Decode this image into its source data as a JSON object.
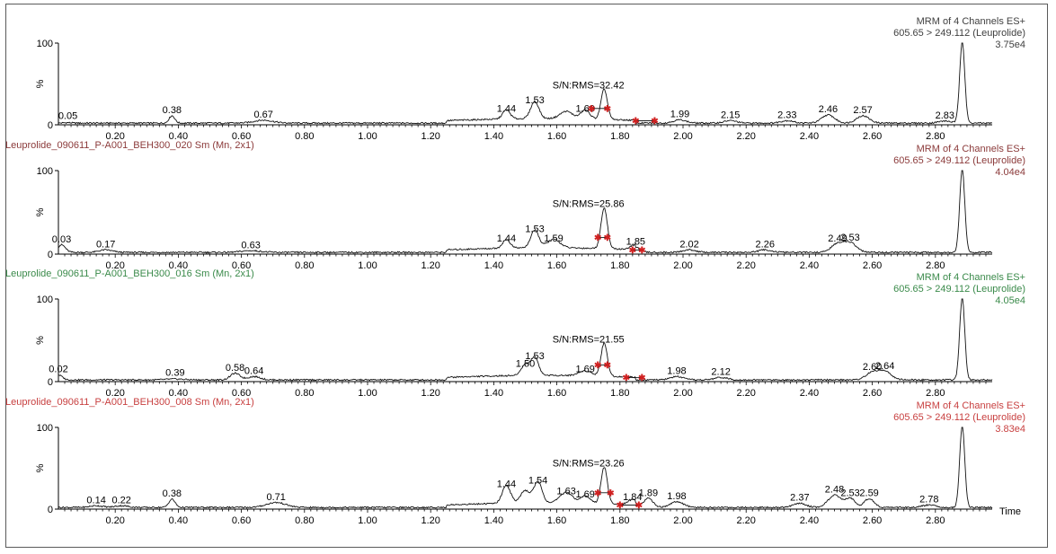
{
  "chart_data": [
    {
      "type": "line",
      "sample_name": "",
      "title_lines": [
        "MRM of 4 Channels ES+",
        "605.65 > 249.112 (Leuprolide)",
        "3.75e4"
      ],
      "title_color": "#404040",
      "ylabel": "%",
      "yticks": [
        0,
        100
      ],
      "xticks": [
        "0.20",
        "0.40",
        "0.60",
        "0.80",
        "1.00",
        "1.20",
        "1.40",
        "1.60",
        "1.80",
        "2.00",
        "2.20",
        "2.40",
        "2.60",
        "2.80"
      ],
      "xlim": [
        0.02,
        2.98
      ],
      "ylim": [
        0,
        100
      ],
      "sn_label": "S/N:RMS=32.42",
      "sn_x": 1.7,
      "noise_markers": [
        [
          1.85,
          1.91
        ]
      ],
      "peak_markers": [
        [
          1.71,
          1.76
        ]
      ],
      "peaks": [
        [
          0.05,
          0.5,
          0.012
        ],
        [
          0.38,
          9,
          0.009
        ],
        [
          0.67,
          3.5,
          0.03
        ],
        [
          1.44,
          11,
          0.012
        ],
        [
          1.53,
          21,
          0.013
        ],
        [
          1.63,
          9,
          0.02
        ],
        [
          1.69,
          11,
          0.014
        ],
        [
          1.75,
          37,
          0.01
        ],
        [
          1.99,
          4,
          0.02
        ],
        [
          2.15,
          3,
          0.02
        ],
        [
          2.33,
          3,
          0.02
        ],
        [
          2.46,
          10,
          0.02
        ],
        [
          2.57,
          9,
          0.02
        ],
        [
          2.83,
          2.5,
          0.02
        ],
        [
          2.885,
          100,
          0.008
        ]
      ],
      "peak_labels": [
        {
          "x": 0.05,
          "text": "0.05"
        },
        {
          "x": 0.38,
          "text": "0.38"
        },
        {
          "x": 0.67,
          "text": "0.67"
        },
        {
          "x": 1.44,
          "text": "1.44"
        },
        {
          "x": 1.53,
          "text": "1.53"
        },
        {
          "x": 1.69,
          "text": "1.69"
        },
        {
          "x": 1.99,
          "text": "1.99"
        },
        {
          "x": 2.15,
          "text": "2.15"
        },
        {
          "x": 2.33,
          "text": "2.33"
        },
        {
          "x": 2.46,
          "text": "2.46"
        },
        {
          "x": 2.57,
          "text": "2.57"
        },
        {
          "x": 2.83,
          "text": "2.83"
        }
      ]
    },
    {
      "type": "line",
      "sample_name": "Leuprolide_090611_P-A001_BEH300_020 Sm (Mn, 2x1)",
      "title_lines": [
        "MRM of 4 Channels ES+",
        "605.65 > 249.112 (Leuprolide)",
        "4.04e4"
      ],
      "title_color": "#8b3a3a",
      "ylabel": "%",
      "yticks": [
        0,
        100
      ],
      "xticks": [
        "0.20",
        "0.40",
        "0.60",
        "0.80",
        "1.00",
        "1.20",
        "1.40",
        "1.60",
        "1.80",
        "2.00",
        "2.20",
        "2.40",
        "2.60",
        "2.80"
      ],
      "xlim": [
        0.02,
        2.98
      ],
      "ylim": [
        0,
        100
      ],
      "sn_label": "S/N:RMS=25.86",
      "sn_x": 1.7,
      "noise_markers": [
        [
          1.84,
          1.87
        ]
      ],
      "peak_markers": [
        [
          1.73,
          1.76
        ]
      ],
      "peaks": [
        [
          0.03,
          9,
          0.012
        ],
        [
          0.17,
          3,
          0.02
        ],
        [
          0.63,
          2,
          0.03
        ],
        [
          1.44,
          10,
          0.012
        ],
        [
          1.53,
          21,
          0.013
        ],
        [
          1.59,
          10,
          0.02
        ],
        [
          1.75,
          49,
          0.01
        ],
        [
          1.85,
          6,
          0.015
        ],
        [
          2.02,
          3,
          0.02
        ],
        [
          2.26,
          3,
          0.02
        ],
        [
          2.49,
          10,
          0.02
        ],
        [
          2.53,
          11,
          0.02
        ],
        [
          2.885,
          100,
          0.008
        ]
      ],
      "peak_labels": [
        {
          "x": 0.03,
          "text": "0.03"
        },
        {
          "x": 0.17,
          "text": "0.17"
        },
        {
          "x": 0.63,
          "text": "0.63"
        },
        {
          "x": 1.44,
          "text": "1.44"
        },
        {
          "x": 1.53,
          "text": "1.53"
        },
        {
          "x": 1.59,
          "text": "1.59"
        },
        {
          "x": 1.85,
          "text": "1.85"
        },
        {
          "x": 2.02,
          "text": "2.02"
        },
        {
          "x": 2.26,
          "text": "2.26"
        },
        {
          "x": 2.49,
          "text": "2.49"
        },
        {
          "x": 2.53,
          "text": "2.53"
        }
      ]
    },
    {
      "type": "line",
      "sample_name": "Leuprolide_090611_P-A001_BEH300_016 Sm (Mn, 2x1)",
      "title_lines": [
        "MRM of 4 Channels ES+",
        "605.65 > 249.112 (Leuprolide)",
        "4.05e4"
      ],
      "title_color": "#3a8a4a",
      "ylabel": "%",
      "yticks": [
        0,
        100
      ],
      "xticks": [
        "0.20",
        "0.40",
        "0.60",
        "0.80",
        "1.00",
        "1.20",
        "1.40",
        "1.60",
        "1.80",
        "2.00",
        "2.20",
        "2.40",
        "2.60",
        "2.80"
      ],
      "xlim": [
        0.02,
        2.98
      ],
      "ylim": [
        0,
        100
      ],
      "sn_label": "S/N:RMS=21.55",
      "sn_x": 1.7,
      "noise_markers": [
        [
          1.82,
          1.87
        ]
      ],
      "peak_markers": [
        [
          1.73,
          1.76
        ]
      ],
      "peaks": [
        [
          0.02,
          6,
          0.012
        ],
        [
          0.39,
          1,
          0.03
        ],
        [
          0.58,
          8,
          0.015
        ],
        [
          0.64,
          4,
          0.02
        ],
        [
          1.5,
          13,
          0.013
        ],
        [
          1.53,
          22,
          0.012
        ],
        [
          1.69,
          6,
          0.02
        ],
        [
          1.75,
          40,
          0.01
        ],
        [
          1.98,
          4,
          0.02
        ],
        [
          2.12,
          3,
          0.02
        ],
        [
          2.6,
          9,
          0.02
        ],
        [
          2.64,
          10,
          0.02
        ],
        [
          2.885,
          100,
          0.008
        ]
      ],
      "peak_labels": [
        {
          "x": 0.02,
          "text": "0.02"
        },
        {
          "x": 0.39,
          "text": "0.39"
        },
        {
          "x": 0.58,
          "text": "0.58"
        },
        {
          "x": 0.64,
          "text": "0.64"
        },
        {
          "x": 1.5,
          "text": "1.50"
        },
        {
          "x": 1.53,
          "text": "1.53"
        },
        {
          "x": 1.69,
          "text": "1.69"
        },
        {
          "x": 1.98,
          "text": "1.98"
        },
        {
          "x": 2.12,
          "text": "2.12"
        },
        {
          "x": 2.6,
          "text": "2.60"
        },
        {
          "x": 2.64,
          "text": "2.64"
        }
      ]
    },
    {
      "type": "line",
      "sample_name": "Leuprolide_090611_P-A001_BEH300_008 Sm (Mn, 2x1)",
      "title_lines": [
        "MRM of 4 Channels ES+",
        "605.65 > 249.112 (Leuprolide)",
        "3.83e4"
      ],
      "title_color": "#c84040",
      "ylabel": "%",
      "yticks": [
        0,
        100
      ],
      "xticks": [
        "0.20",
        "0.40",
        "0.60",
        "0.80",
        "1.00",
        "1.20",
        "1.40",
        "1.60",
        "1.80",
        "2.00",
        "2.20",
        "2.40",
        "2.60",
        "2.80"
      ],
      "xlabel": "Time",
      "xlim": [
        0.02,
        2.98
      ],
      "ylim": [
        0,
        100
      ],
      "sn_label": "S/N:RMS=23.26",
      "sn_x": 1.7,
      "noise_markers": [
        [
          1.8,
          1.86
        ]
      ],
      "peak_markers": [
        [
          1.73,
          1.77
        ]
      ],
      "peaks": [
        [
          0.14,
          2,
          0.02
        ],
        [
          0.22,
          2,
          0.02
        ],
        [
          0.38,
          10,
          0.01
        ],
        [
          0.71,
          6,
          0.03
        ],
        [
          1.44,
          22,
          0.013
        ],
        [
          1.5,
          15,
          0.015
        ],
        [
          1.54,
          26,
          0.013
        ],
        [
          1.63,
          13,
          0.02
        ],
        [
          1.69,
          9,
          0.015
        ],
        [
          1.75,
          45,
          0.01
        ],
        [
          1.84,
          6,
          0.015
        ],
        [
          1.89,
          11,
          0.015
        ],
        [
          1.98,
          7,
          0.02
        ],
        [
          2.37,
          5,
          0.02
        ],
        [
          2.48,
          15,
          0.02
        ],
        [
          2.53,
          11,
          0.015
        ],
        [
          2.59,
          11,
          0.015
        ],
        [
          2.78,
          3,
          0.02
        ],
        [
          2.885,
          100,
          0.008
        ]
      ],
      "peak_labels": [
        {
          "x": 0.14,
          "text": "0.14"
        },
        {
          "x": 0.22,
          "text": "0.22"
        },
        {
          "x": 0.38,
          "text": "0.38"
        },
        {
          "x": 0.71,
          "text": "0.71"
        },
        {
          "x": 1.44,
          "text": "1.44"
        },
        {
          "x": 1.54,
          "text": "1.54"
        },
        {
          "x": 1.63,
          "text": "1.63"
        },
        {
          "x": 1.69,
          "text": "1.69"
        },
        {
          "x": 1.84,
          "text": "1.84"
        },
        {
          "x": 1.89,
          "text": "1.89"
        },
        {
          "x": 1.98,
          "text": "1.98"
        },
        {
          "x": 2.37,
          "text": "2.37"
        },
        {
          "x": 2.48,
          "text": "2.48"
        },
        {
          "x": 2.53,
          "text": "2.53"
        },
        {
          "x": 2.59,
          "text": "2.59"
        },
        {
          "x": 2.78,
          "text": "2.78"
        }
      ]
    }
  ]
}
